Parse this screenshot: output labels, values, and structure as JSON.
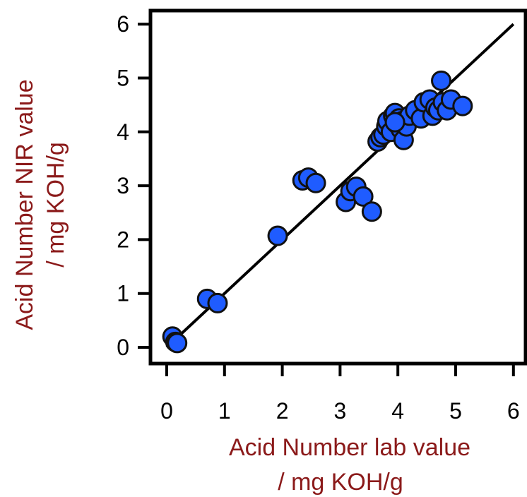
{
  "chart_data": {
    "type": "scatter",
    "title": "",
    "xlabel": "Acid Number lab value",
    "xlabel_unit": "/ mg KOH/g",
    "ylabel": "Acid Number NIR value",
    "ylabel_unit": "/ mg KOH/g",
    "xlim": [
      -0.3,
      6.3
    ],
    "ylim": [
      -0.3,
      6.3
    ],
    "xticks": [
      "0",
      "1",
      "2",
      "3",
      "4",
      "5",
      "6"
    ],
    "yticks": [
      "0",
      "1",
      "2",
      "3",
      "4",
      "5",
      "6"
    ],
    "grid": false,
    "legend": "none",
    "colors": {
      "marker": "#1f5cff",
      "marker_edge": "#111111",
      "line": "#000000",
      "axis_title": "#8b1a1a"
    },
    "series": [
      {
        "kind": "points",
        "points": [
          [
            0.1,
            0.2
          ],
          [
            0.15,
            0.1
          ],
          [
            0.18,
            0.08
          ],
          [
            0.7,
            0.9
          ],
          [
            0.88,
            0.82
          ],
          [
            1.92,
            2.07
          ],
          [
            2.35,
            3.1
          ],
          [
            2.45,
            3.15
          ],
          [
            2.58,
            3.05
          ],
          [
            3.1,
            2.7
          ],
          [
            3.18,
            2.9
          ],
          [
            3.28,
            2.98
          ],
          [
            3.4,
            2.8
          ],
          [
            3.55,
            2.52
          ],
          [
            3.65,
            3.82
          ],
          [
            3.7,
            3.9
          ],
          [
            3.75,
            3.95
          ],
          [
            3.8,
            4.1
          ],
          [
            3.82,
            4.2
          ],
          [
            3.88,
            4.0
          ],
          [
            3.92,
            4.3
          ],
          [
            3.95,
            4.35
          ],
          [
            3.98,
            4.15
          ],
          [
            4.02,
            4.25
          ],
          [
            4.05,
            4.05
          ],
          [
            4.08,
            4.2
          ],
          [
            4.1,
            3.85
          ],
          [
            4.15,
            4.1
          ],
          [
            4.2,
            4.3
          ],
          [
            4.3,
            4.4
          ],
          [
            4.4,
            4.25
          ],
          [
            4.45,
            4.55
          ],
          [
            4.55,
            4.6
          ],
          [
            4.6,
            4.3
          ],
          [
            4.65,
            4.45
          ],
          [
            4.7,
            4.4
          ],
          [
            4.75,
            4.95
          ],
          [
            4.78,
            4.55
          ],
          [
            4.85,
            4.4
          ],
          [
            4.92,
            4.6
          ],
          [
            5.12,
            4.48
          ],
          [
            3.95,
            4.18
          ]
        ]
      },
      {
        "kind": "fit-line",
        "x": [
          0.0,
          6.0
        ],
        "y": [
          0.0,
          6.0
        ]
      }
    ]
  }
}
